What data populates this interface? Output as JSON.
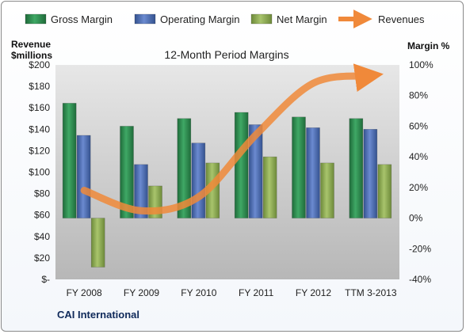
{
  "chart_data": {
    "type": "bar",
    "title": "12-Month Period Margins",
    "company": "CAI International",
    "y_left_label_line1": "Revenue",
    "y_left_label_line2": "$millions",
    "y_right_label": "Margin %",
    "categories": [
      "FY 2008",
      "FY 2009",
      "FY 2010",
      "FY 2011",
      "FY 2012",
      "TTM 3-2013"
    ],
    "y_left_ticks": [
      "$200",
      "$180",
      "$160",
      "$140",
      "$120",
      "$100",
      "$80",
      "$60",
      "$40",
      "$20",
      "$-"
    ],
    "y_right_ticks": [
      "100%",
      "80%",
      "60%",
      "40%",
      "20%",
      "0%",
      "-20%",
      "-40%"
    ],
    "ylim_left": [
      0,
      200
    ],
    "ylim_right": [
      -40,
      100
    ],
    "series": [
      {
        "name": "Gross Margin",
        "axis": "right",
        "kind": "bar",
        "color": "#2e8b4e",
        "values": [
          75,
          60,
          65,
          69,
          66,
          65
        ]
      },
      {
        "name": "Operating Margin",
        "axis": "right",
        "kind": "bar",
        "color": "#4f6fb7",
        "values": [
          54,
          35,
          49,
          61,
          59,
          58
        ]
      },
      {
        "name": "Net Margin",
        "axis": "right",
        "kind": "bar",
        "color": "#8fad55",
        "values": [
          -32,
          21,
          36,
          40,
          36,
          35
        ]
      },
      {
        "name": "Revenues",
        "axis": "left",
        "kind": "line",
        "color": "#f0893a",
        "values": [
          83,
          64,
          77,
          135,
          183,
          190
        ]
      }
    ],
    "grid": false,
    "legend_position": "top"
  }
}
